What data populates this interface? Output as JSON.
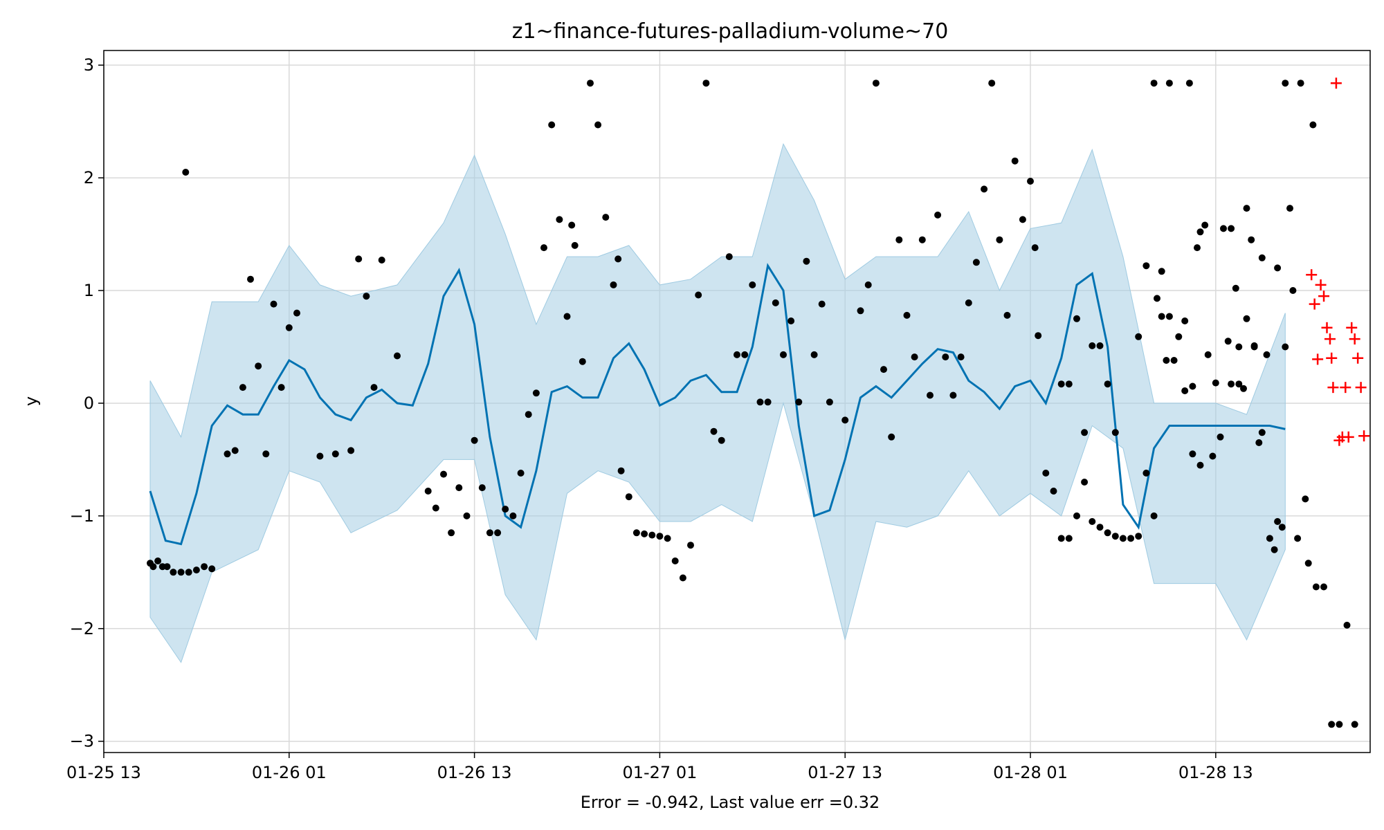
{
  "chart_data": {
    "type": "line",
    "title": "z1~finance-futures-palladium-volume~70",
    "xlabel": "Error = -0.942, Last value err =0.32",
    "ylabel": "y",
    "x_tick_labels": [
      "01-25 13",
      "01-26 01",
      "01-26 13",
      "01-27 01",
      "01-27 13",
      "01-28 01",
      "01-28 13"
    ],
    "y_ticks": [
      -3,
      -2,
      -1,
      0,
      1,
      2,
      3
    ],
    "y_tick_labels": [
      "−3",
      "−2",
      "−1",
      "0",
      "1",
      "2",
      "3"
    ],
    "xlim_hours": [
      0,
      82
    ],
    "ylim": [
      -3.1,
      3.13
    ],
    "grid": true,
    "colors": {
      "forecast": "#0072B2",
      "band": "#a6cee3",
      "history": "#000000",
      "actual": "#ff0000"
    },
    "series": [
      {
        "kind": "forecast_line",
        "x": [
          3,
          4,
          5,
          6,
          7,
          8,
          9,
          10,
          11,
          12,
          13,
          14,
          15,
          16,
          17,
          18,
          19,
          20,
          21,
          22,
          23,
          24,
          25,
          26,
          27,
          28,
          29,
          30,
          31,
          32,
          33,
          34,
          35,
          36,
          37,
          38,
          39,
          40,
          41,
          42,
          43,
          44,
          45,
          46,
          47,
          48,
          49,
          50,
          51,
          52,
          53,
          54,
          55,
          56,
          57,
          58,
          59,
          60,
          61,
          62,
          63,
          64,
          65,
          66,
          67,
          68,
          69,
          70,
          71,
          72,
          73,
          74,
          75,
          75.5,
          76.5
        ],
        "values": [
          -0.78,
          -1.22,
          -1.25,
          -0.8,
          -0.2,
          -0.02,
          -0.1,
          -0.1,
          0.15,
          0.38,
          0.3,
          0.05,
          -0.1,
          -0.15,
          0.05,
          0.12,
          0.0,
          -0.02,
          0.35,
          0.95,
          1.18,
          0.7,
          -0.3,
          -1.0,
          -1.1,
          -0.6,
          0.1,
          0.15,
          0.05,
          0.05,
          0.4,
          0.53,
          0.3,
          -0.02,
          0.05,
          0.2,
          0.25,
          0.1,
          0.1,
          0.5,
          1.22,
          1.0,
          -0.2,
          -1.0,
          -0.95,
          -0.5,
          0.05,
          0.15,
          0.05,
          0.2,
          0.35,
          0.48,
          0.45,
          0.2,
          0.1,
          -0.05,
          0.15,
          0.2,
          0.0,
          0.4,
          1.05,
          1.15,
          0.5,
          -0.9,
          -1.1,
          -0.4,
          -0.2,
          -0.2,
          -0.2,
          -0.2,
          -0.2,
          -0.2,
          -0.2,
          -0.2,
          -0.23
        ]
      },
      {
        "kind": "uncertainty_band",
        "x": [
          3,
          5,
          7,
          10,
          12,
          14,
          16,
          19,
          22,
          24,
          26,
          28,
          30,
          32,
          34,
          36,
          38,
          40,
          42,
          44,
          46,
          48,
          50,
          52,
          54,
          56,
          58,
          60,
          62,
          64,
          66,
          68,
          70,
          72,
          74,
          76.5
        ],
        "upper": [
          0.2,
          -0.3,
          0.9,
          0.9,
          1.4,
          1.05,
          0.95,
          1.05,
          1.6,
          2.2,
          1.5,
          0.7,
          1.3,
          1.3,
          1.4,
          1.05,
          1.1,
          1.3,
          1.3,
          2.3,
          1.8,
          1.1,
          1.3,
          1.3,
          1.3,
          1.7,
          1.0,
          1.55,
          1.6,
          2.25,
          1.3,
          0.0,
          0.0,
          0.0,
          -0.1,
          0.8
        ],
        "lower": [
          -1.9,
          -2.3,
          -1.5,
          -1.3,
          -0.6,
          -0.7,
          -1.15,
          -0.95,
          -0.5,
          -0.5,
          -1.7,
          -2.1,
          -0.8,
          -0.6,
          -0.7,
          -1.05,
          -1.05,
          -0.9,
          -1.05,
          0.0,
          -1.0,
          -2.1,
          -1.05,
          -1.1,
          -1.0,
          -0.6,
          -1.0,
          -0.8,
          -1.0,
          -0.2,
          -0.4,
          -1.6,
          -1.6,
          -1.6,
          -2.1,
          -1.3
        ]
      },
      {
        "kind": "history_points",
        "points": [
          [
            3.0,
            -1.42
          ],
          [
            3.2,
            -1.45
          ],
          [
            3.5,
            -1.4
          ],
          [
            3.8,
            -1.45
          ],
          [
            4.1,
            -1.45
          ],
          [
            4.5,
            -1.5
          ],
          [
            5.0,
            -1.5
          ],
          [
            5.5,
            -1.5
          ],
          [
            6.0,
            -1.48
          ],
          [
            6.5,
            -1.45
          ],
          [
            7.0,
            -1.47
          ],
          [
            5.3,
            2.05
          ],
          [
            8.0,
            -0.45
          ],
          [
            8.5,
            -0.42
          ],
          [
            9.0,
            0.14
          ],
          [
            9.5,
            1.1
          ],
          [
            10.0,
            0.33
          ],
          [
            10.5,
            -0.45
          ],
          [
            11.0,
            0.88
          ],
          [
            11.5,
            0.14
          ],
          [
            12.0,
            0.67
          ],
          [
            12.5,
            0.8
          ],
          [
            14.0,
            -0.47
          ],
          [
            15.0,
            -0.45
          ],
          [
            16.0,
            -0.42
          ],
          [
            16.5,
            1.28
          ],
          [
            17.0,
            0.95
          ],
          [
            17.5,
            0.14
          ],
          [
            18.0,
            1.27
          ],
          [
            19.0,
            0.42
          ],
          [
            21.0,
            -0.78
          ],
          [
            21.5,
            -0.93
          ],
          [
            22.0,
            -0.63
          ],
          [
            22.5,
            -1.15
          ],
          [
            23.0,
            -0.75
          ],
          [
            23.5,
            -1.0
          ],
          [
            24.0,
            -0.33
          ],
          [
            24.5,
            -0.75
          ],
          [
            25.0,
            -1.15
          ],
          [
            25.5,
            -1.15
          ],
          [
            26.0,
            -0.94
          ],
          [
            26.5,
            -1.0
          ],
          [
            27.0,
            -0.62
          ],
          [
            27.5,
            -0.1
          ],
          [
            28.0,
            0.09
          ],
          [
            28.5,
            1.38
          ],
          [
            29.0,
            2.47
          ],
          [
            29.5,
            1.63
          ],
          [
            30.0,
            0.77
          ],
          [
            30.3,
            1.58
          ],
          [
            30.5,
            1.4
          ],
          [
            31.0,
            0.37
          ],
          [
            31.5,
            2.84
          ],
          [
            32.0,
            2.47
          ],
          [
            32.5,
            1.65
          ],
          [
            33.0,
            1.05
          ],
          [
            33.3,
            1.28
          ],
          [
            33.5,
            -0.6
          ],
          [
            34.0,
            -0.83
          ],
          [
            34.5,
            -1.15
          ],
          [
            35.0,
            -1.16
          ],
          [
            35.5,
            -1.17
          ],
          [
            36.0,
            -1.18
          ],
          [
            36.5,
            -1.2
          ],
          [
            37.0,
            -1.4
          ],
          [
            37.5,
            -1.55
          ],
          [
            38.0,
            -1.26
          ],
          [
            38.5,
            0.96
          ],
          [
            39.0,
            2.84
          ],
          [
            39.5,
            -0.25
          ],
          [
            40.0,
            -0.33
          ],
          [
            40.5,
            1.3
          ],
          [
            41.0,
            0.43
          ],
          [
            41.5,
            0.43
          ],
          [
            42.0,
            1.05
          ],
          [
            42.5,
            0.01
          ],
          [
            43.0,
            0.01
          ],
          [
            43.5,
            0.89
          ],
          [
            44.0,
            0.43
          ],
          [
            44.5,
            0.73
          ],
          [
            45.0,
            0.01
          ],
          [
            45.5,
            1.26
          ],
          [
            46.0,
            0.43
          ],
          [
            46.5,
            0.88
          ],
          [
            47.0,
            0.01
          ],
          [
            48.0,
            -0.15
          ],
          [
            49.0,
            0.82
          ],
          [
            49.5,
            1.05
          ],
          [
            50.0,
            2.84
          ],
          [
            50.5,
            0.3
          ],
          [
            51.0,
            -0.3
          ],
          [
            51.5,
            1.45
          ],
          [
            52.0,
            0.78
          ],
          [
            52.5,
            0.41
          ],
          [
            53.0,
            1.45
          ],
          [
            53.5,
            0.07
          ],
          [
            54.0,
            1.67
          ],
          [
            54.5,
            0.41
          ],
          [
            55.0,
            0.07
          ],
          [
            55.5,
            0.41
          ],
          [
            56.0,
            0.89
          ],
          [
            56.5,
            1.25
          ],
          [
            57.0,
            1.9
          ],
          [
            57.5,
            2.84
          ],
          [
            58.0,
            1.45
          ],
          [
            58.5,
            0.78
          ],
          [
            59.0,
            2.15
          ],
          [
            59.5,
            1.63
          ],
          [
            60.0,
            1.97
          ],
          [
            60.3,
            1.38
          ],
          [
            60.5,
            0.6
          ],
          [
            61.0,
            -0.62
          ],
          [
            61.5,
            -0.78
          ],
          [
            62.0,
            -1.2
          ],
          [
            62.5,
            -1.2
          ],
          [
            63.0,
            -1.0
          ],
          [
            63.5,
            -0.7
          ],
          [
            64.0,
            -1.05
          ],
          [
            64.5,
            -1.1
          ],
          [
            65.0,
            -1.15
          ],
          [
            65.5,
            -1.18
          ],
          [
            66.0,
            -1.2
          ],
          [
            66.5,
            -1.2
          ],
          [
            67.0,
            -1.18
          ],
          [
            67.5,
            -0.62
          ],
          [
            68.0,
            -1.0
          ],
          [
            68.5,
            1.17
          ],
          [
            69.0,
            2.84
          ],
          [
            70.0,
            0.73
          ],
          [
            70.5,
            -0.45
          ],
          [
            71.0,
            -0.55
          ],
          [
            73.0,
            0.17
          ],
          [
            73.5,
            0.17
          ],
          [
            74.0,
            0.75
          ],
          [
            74.5,
            0.51
          ],
          [
            75.0,
            -0.26
          ],
          [
            76.0,
            1.2
          ],
          [
            76.5,
            0.5
          ]
        ]
      },
      {
        "kind": "history_points_tail",
        "points": [
          [
            62.0,
            0.17
          ],
          [
            62.5,
            0.17
          ],
          [
            63.0,
            0.75
          ],
          [
            63.5,
            -0.26
          ],
          [
            64.0,
            0.51
          ],
          [
            64.5,
            0.51
          ],
          [
            65.0,
            0.17
          ],
          [
            65.5,
            -0.26
          ],
          [
            67.0,
            0.59
          ],
          [
            67.5,
            1.22
          ],
          [
            68.0,
            2.84
          ],
          [
            68.2,
            0.93
          ],
          [
            68.5,
            0.77
          ],
          [
            68.8,
            0.38
          ],
          [
            69.0,
            0.77
          ],
          [
            69.3,
            0.38
          ],
          [
            69.6,
            0.59
          ],
          [
            70.0,
            0.11
          ],
          [
            70.3,
            2.84
          ],
          [
            70.5,
            0.15
          ],
          [
            70.8,
            1.38
          ],
          [
            71.0,
            1.52
          ],
          [
            71.3,
            1.58
          ],
          [
            71.5,
            0.43
          ],
          [
            71.8,
            -0.47
          ],
          [
            72.0,
            0.18
          ],
          [
            72.3,
            -0.3
          ],
          [
            72.5,
            1.55
          ],
          [
            72.8,
            0.55
          ],
          [
            73.0,
            1.55
          ],
          [
            73.3,
            1.02
          ],
          [
            73.5,
            0.5
          ],
          [
            73.8,
            0.13
          ],
          [
            74.0,
            1.73
          ],
          [
            74.3,
            1.45
          ],
          [
            74.5,
            0.5
          ],
          [
            74.8,
            -0.35
          ],
          [
            75.0,
            1.29
          ],
          [
            75.3,
            0.43
          ],
          [
            75.5,
            -1.2
          ],
          [
            75.8,
            -1.3
          ],
          [
            76.0,
            -1.05
          ],
          [
            76.3,
            -1.1
          ],
          [
            76.5,
            2.84
          ],
          [
            76.8,
            1.73
          ],
          [
            77.0,
            1.0
          ],
          [
            77.3,
            -1.2
          ],
          [
            77.5,
            2.84
          ],
          [
            77.8,
            -0.85
          ],
          [
            78.0,
            -1.42
          ],
          [
            78.3,
            2.47
          ],
          [
            78.5,
            -1.63
          ],
          [
            79.0,
            -1.63
          ],
          [
            79.5,
            -2.85
          ],
          [
            80.0,
            -2.85
          ],
          [
            80.5,
            -1.97
          ],
          [
            81.0,
            -2.85
          ]
        ]
      },
      {
        "kind": "actual_points",
        "points": [
          [
            78.2,
            1.14
          ],
          [
            78.4,
            0.88
          ],
          [
            78.6,
            0.39
          ],
          [
            78.8,
            1.05
          ],
          [
            79.0,
            0.95
          ],
          [
            79.2,
            0.67
          ],
          [
            79.4,
            0.57
          ],
          [
            79.5,
            0.4
          ],
          [
            79.6,
            0.14
          ],
          [
            79.8,
            2.84
          ],
          [
            80.0,
            -0.33
          ],
          [
            80.2,
            -0.3
          ],
          [
            80.4,
            0.14
          ],
          [
            80.6,
            -0.3
          ],
          [
            80.8,
            0.67
          ],
          [
            81.0,
            0.57
          ],
          [
            81.2,
            0.4
          ],
          [
            81.4,
            0.14
          ],
          [
            81.6,
            -0.29
          ]
        ]
      }
    ]
  }
}
